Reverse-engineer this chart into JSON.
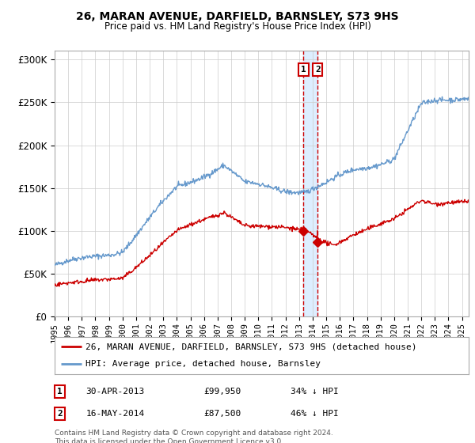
{
  "title": "26, MARAN AVENUE, DARFIELD, BARNSLEY, S73 9HS",
  "subtitle": "Price paid vs. HM Land Registry's House Price Index (HPI)",
  "legend_line1": "26, MARAN AVENUE, DARFIELD, BARNSLEY, S73 9HS (detached house)",
  "legend_line2": "HPI: Average price, detached house, Barnsley",
  "annotation1_date": "30-APR-2013",
  "annotation1_price": "£99,950",
  "annotation1_pct": "34% ↓ HPI",
  "annotation2_date": "16-MAY-2014",
  "annotation2_price": "£87,500",
  "annotation2_pct": "46% ↓ HPI",
  "footer": "Contains HM Land Registry data © Crown copyright and database right 2024.\nThis data is licensed under the Open Government Licence v3.0.",
  "red_color": "#cc0000",
  "blue_color": "#6699cc",
  "background_color": "#ffffff",
  "grid_color": "#cccccc",
  "highlight_color": "#ddeeff",
  "ylim": [
    0,
    310000
  ],
  "yticks": [
    0,
    50000,
    100000,
    150000,
    200000,
    250000,
    300000
  ],
  "sale1_year": 2013.33,
  "sale1_value": 99950,
  "sale2_year": 2014.37,
  "sale2_value": 87500,
  "xmin": 1995,
  "xmax": 2025.5
}
